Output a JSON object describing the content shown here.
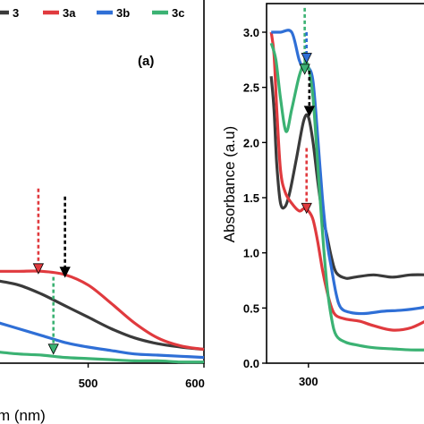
{
  "chart_data": [
    {
      "type": "line",
      "panel_label": "(a)",
      "xlabel": "m (nm)",
      "ylabel": "",
      "xlim": [
        420,
        600
      ],
      "ylim": [
        0,
        3.2
      ],
      "xticks": [
        500,
        600
      ],
      "legend_position": "top",
      "series": [
        {
          "name": "3",
          "color": "#3a3a3a",
          "x": [
            420,
            440,
            460,
            480,
            500,
            520,
            540,
            560,
            580,
            600
          ],
          "y": [
            0.72,
            0.68,
            0.6,
            0.5,
            0.4,
            0.3,
            0.22,
            0.17,
            0.14,
            0.12
          ]
        },
        {
          "name": "3a",
          "color": "#e03a3e",
          "x": [
            420,
            440,
            460,
            480,
            500,
            520,
            540,
            560,
            580,
            600
          ],
          "y": [
            0.8,
            0.8,
            0.8,
            0.77,
            0.68,
            0.52,
            0.35,
            0.22,
            0.15,
            0.12
          ]
        },
        {
          "name": "3b",
          "color": "#2f6fd6",
          "x": [
            420,
            440,
            460,
            480,
            500,
            520,
            540,
            560,
            580,
            600
          ],
          "y": [
            0.36,
            0.3,
            0.24,
            0.18,
            0.14,
            0.11,
            0.08,
            0.07,
            0.06,
            0.05
          ]
        },
        {
          "name": "3c",
          "color": "#3bb273",
          "x": [
            420,
            440,
            460,
            480,
            500,
            520,
            540,
            560,
            580,
            600
          ],
          "y": [
            0.1,
            0.08,
            0.07,
            0.05,
            0.04,
            0.03,
            0.02,
            0.02,
            0.01,
            0.01
          ]
        }
      ],
      "arrows": [
        {
          "color": "#e03a3e",
          "x": 457,
          "y_top": 1.52,
          "y_tip": 0.78
        },
        {
          "color": "#000000",
          "x": 480,
          "y_top": 1.45,
          "y_tip": 0.75
        },
        {
          "color": "#3bb273",
          "x": 470,
          "y_top": 0.75,
          "y_tip": 0.08
        }
      ]
    },
    {
      "type": "line",
      "xlabel": "",
      "ylabel": "Absorbance (a.u)",
      "xlim": [
        255,
        430
      ],
      "ylim": [
        0,
        3.2
      ],
      "xticks": [
        300
      ],
      "yticks": [
        0.0,
        0.5,
        1.0,
        1.5,
        2.0,
        2.5,
        3.0
      ],
      "ytick_labels": [
        "0.0",
        "0.5",
        "1.0",
        "1.5",
        "2.0",
        "2.5",
        "3.0"
      ],
      "series": [
        {
          "name": "3",
          "color": "#3a3a3a",
          "x": [
            260,
            263,
            266,
            270,
            275,
            280,
            287,
            295,
            300,
            305,
            310,
            315,
            320,
            325,
            330,
            340,
            350,
            370,
            390,
            410,
            430
          ],
          "y": [
            2.6,
            2.3,
            1.8,
            1.45,
            1.42,
            1.55,
            1.85,
            2.2,
            2.23,
            2.0,
            1.65,
            1.35,
            1.15,
            0.95,
            0.82,
            0.77,
            0.78,
            0.8,
            0.78,
            0.8,
            0.8
          ]
        },
        {
          "name": "3a",
          "color": "#e03a3e",
          "x": [
            260,
            263,
            266,
            270,
            275,
            282,
            290,
            295,
            300,
            305,
            310,
            315,
            320,
            325,
            330,
            340,
            355,
            370,
            390,
            410,
            430
          ],
          "y": [
            3.0,
            2.8,
            2.3,
            1.75,
            1.55,
            1.45,
            1.38,
            1.4,
            1.38,
            1.3,
            1.1,
            0.85,
            0.65,
            0.5,
            0.43,
            0.4,
            0.38,
            0.34,
            0.3,
            0.32,
            0.4
          ]
        },
        {
          "name": "3b",
          "color": "#2f6fd6",
          "x": [
            260,
            270,
            282,
            290,
            295,
            300,
            305,
            310,
            315,
            320,
            325,
            330,
            335,
            345,
            360,
            380,
            400,
            420,
            430
          ],
          "y": [
            3.0,
            3.0,
            3.0,
            2.75,
            2.68,
            2.68,
            2.55,
            2.05,
            1.5,
            1.1,
            0.85,
            0.62,
            0.5,
            0.46,
            0.45,
            0.47,
            0.48,
            0.5,
            0.52
          ]
        },
        {
          "name": "3c",
          "color": "#3bb273",
          "x": [
            260,
            265,
            270,
            276,
            282,
            290,
            296,
            300,
            305,
            310,
            315,
            320,
            325,
            330,
            340,
            355,
            370,
            390,
            410,
            430
          ],
          "y": [
            2.9,
            2.75,
            2.4,
            2.1,
            2.3,
            2.6,
            2.72,
            2.68,
            2.4,
            1.8,
            1.2,
            0.7,
            0.4,
            0.25,
            0.19,
            0.16,
            0.14,
            0.13,
            0.12,
            0.12
          ]
        }
      ],
      "arrows": [
        {
          "color": "#3bb273",
          "x": 296,
          "y_top": 3.22,
          "y_tip": 2.62
        },
        {
          "color": "#2f6fd6",
          "x": 298,
          "y_top": 3.0,
          "y_tip": 2.72
        },
        {
          "color": "#000000",
          "x": 301,
          "y_top": 2.65,
          "y_tip": 2.24
        },
        {
          "color": "#e03a3e",
          "x": 298,
          "y_top": 1.95,
          "y_tip": 1.36
        }
      ]
    }
  ]
}
